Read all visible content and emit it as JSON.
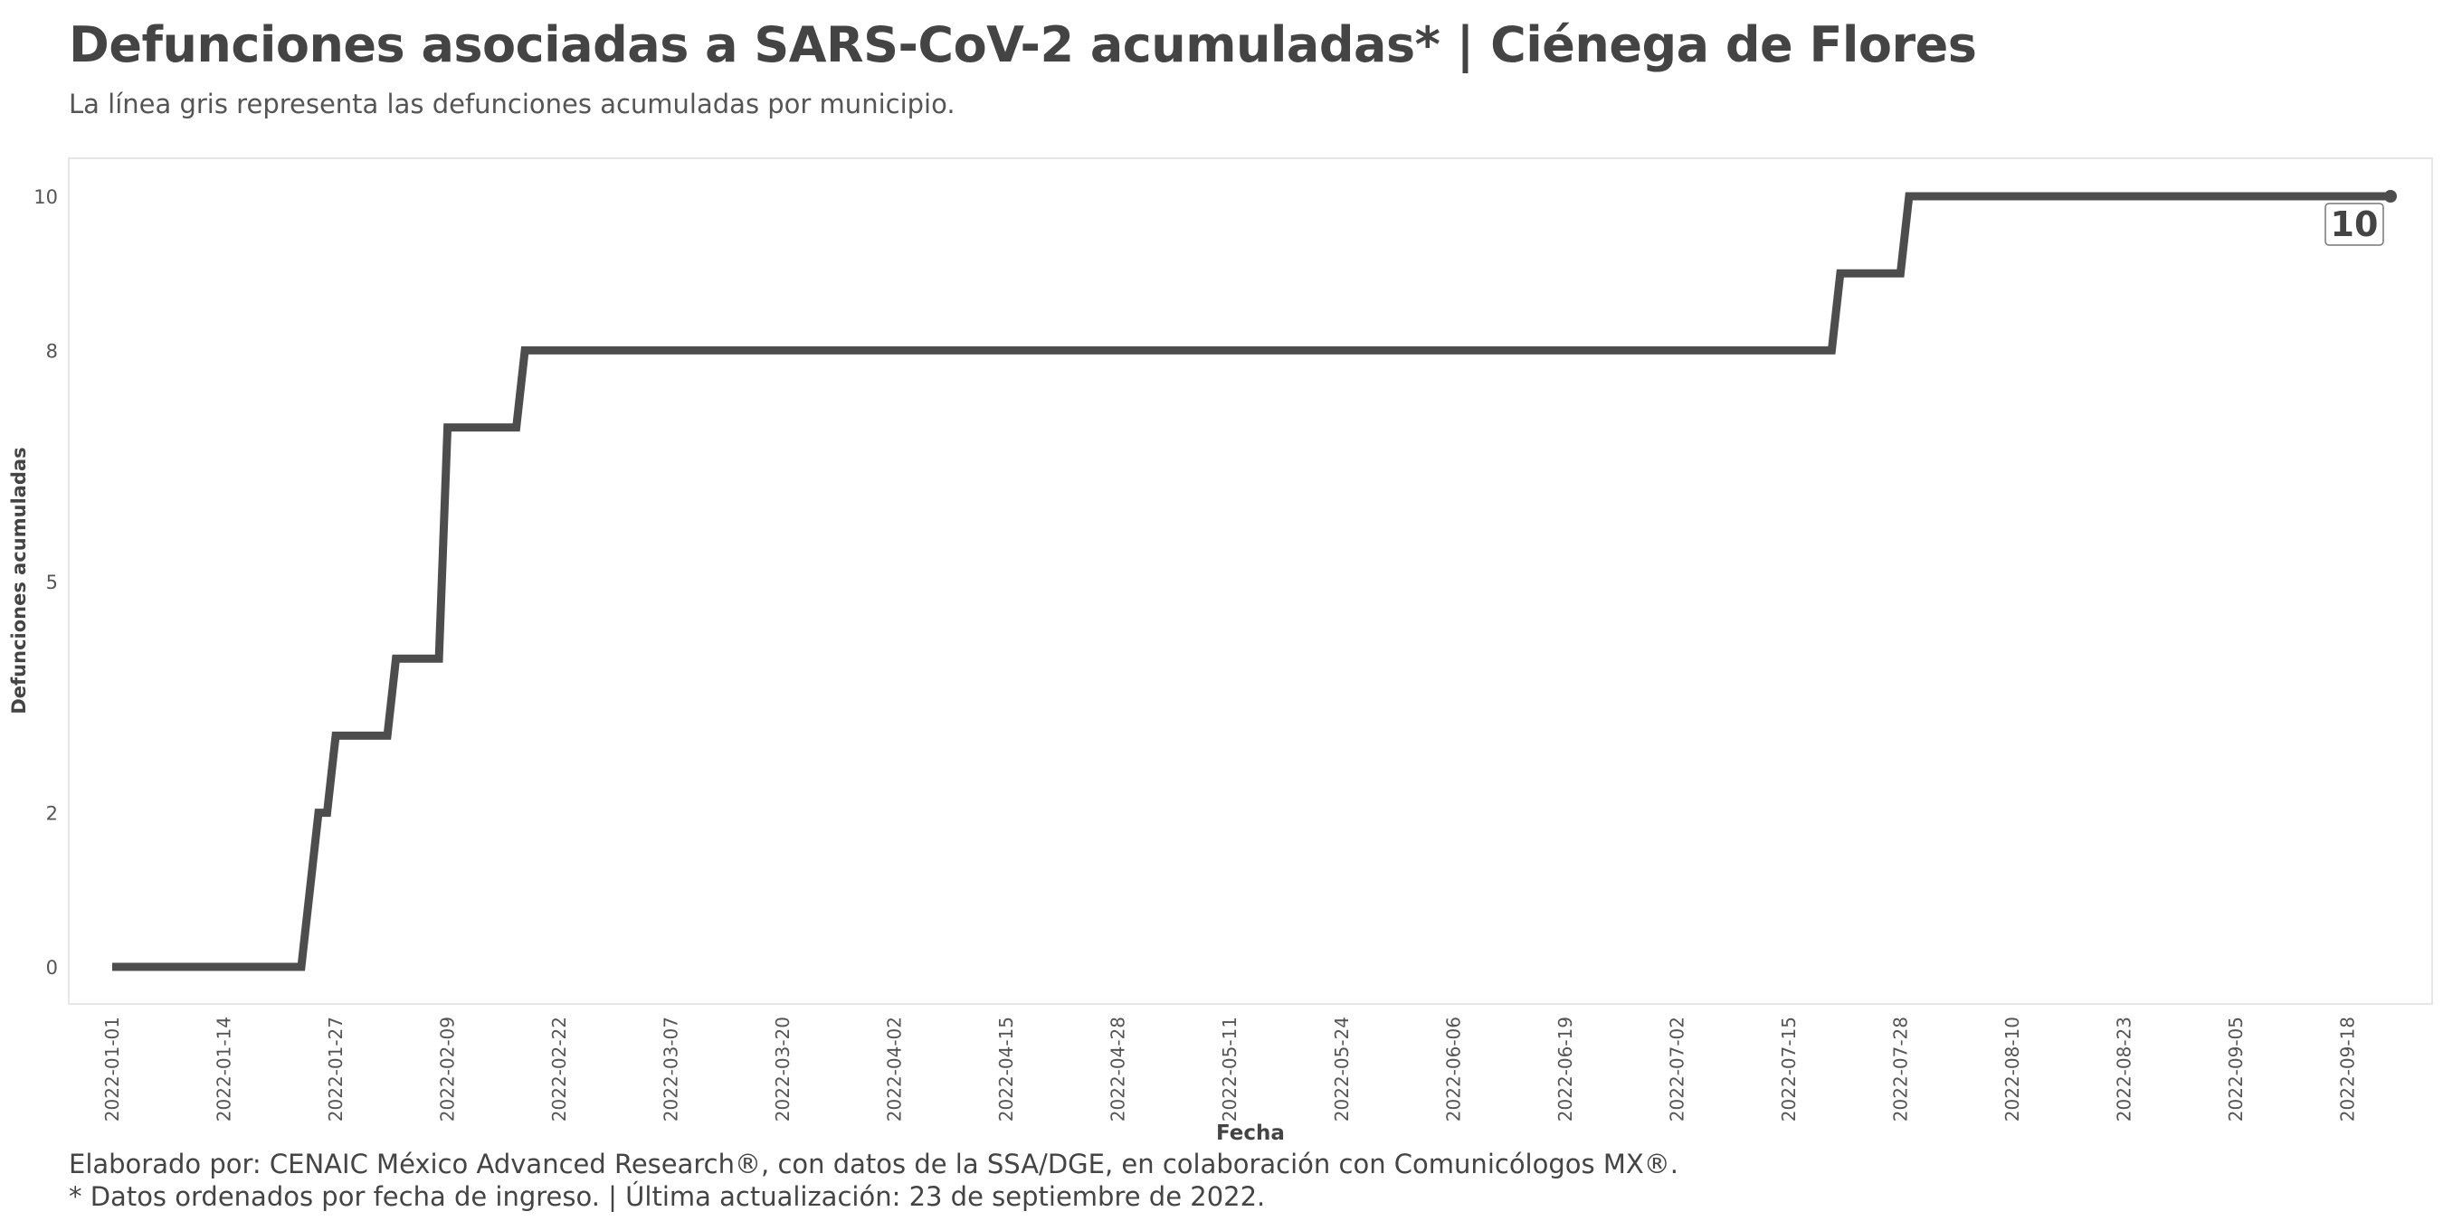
{
  "header": {
    "title": "Defunciones asociadas a SARS-CoV-2 acumuladas* | Ciénega de Flores",
    "subtitle": "La línea gris representa las defunciones acumuladas por municipio."
  },
  "footer": {
    "caption_line1": "Elaborado por: CENAIC México Advanced Research®, con datos de la SSA/DGE, en colaboración con Comunicólogos MX®.",
    "caption_line2": "* Datos ordenados por fecha de ingreso. | Última actualización: 23 de septiembre de 2022."
  },
  "chart_data": {
    "type": "line",
    "step": true,
    "xlabel": "Fecha",
    "ylabel": "Defunciones acumuladas",
    "xlim": [
      "2022-01-01",
      "2022-09-23"
    ],
    "ylim": [
      0,
      10
    ],
    "yticks": [
      0,
      2,
      5,
      8,
      10
    ],
    "ytick_labels": [
      "0",
      "2",
      "5",
      "8",
      "10"
    ],
    "xticks": [
      "2022-01-01",
      "2022-01-14",
      "2022-01-27",
      "2022-02-09",
      "2022-02-22",
      "2022-03-07",
      "2022-03-20",
      "2022-04-02",
      "2022-04-15",
      "2022-04-28",
      "2022-05-11",
      "2022-05-24",
      "2022-06-06",
      "2022-06-19",
      "2022-07-02",
      "2022-07-15",
      "2022-07-28",
      "2022-08-10",
      "2022-08-23",
      "2022-09-05",
      "2022-09-18"
    ],
    "grid": false,
    "line_color": "#4d4d4d",
    "series": [
      {
        "points": [
          {
            "x": "2022-01-01",
            "y": 0
          },
          {
            "x": "2022-01-23",
            "y": 0
          },
          {
            "x": "2022-01-25",
            "y": 2
          },
          {
            "x": "2022-01-26",
            "y": 2
          },
          {
            "x": "2022-01-27",
            "y": 3
          },
          {
            "x": "2022-02-02",
            "y": 3
          },
          {
            "x": "2022-02-03",
            "y": 4
          },
          {
            "x": "2022-02-08",
            "y": 4
          },
          {
            "x": "2022-02-09",
            "y": 7
          },
          {
            "x": "2022-02-17",
            "y": 7
          },
          {
            "x": "2022-02-18",
            "y": 8
          },
          {
            "x": "2022-07-20",
            "y": 8
          },
          {
            "x": "2022-07-21",
            "y": 9
          },
          {
            "x": "2022-07-28",
            "y": 9
          },
          {
            "x": "2022-07-29",
            "y": 10
          },
          {
            "x": "2022-09-23",
            "y": 10
          }
        ]
      }
    ],
    "end_label": "10"
  }
}
